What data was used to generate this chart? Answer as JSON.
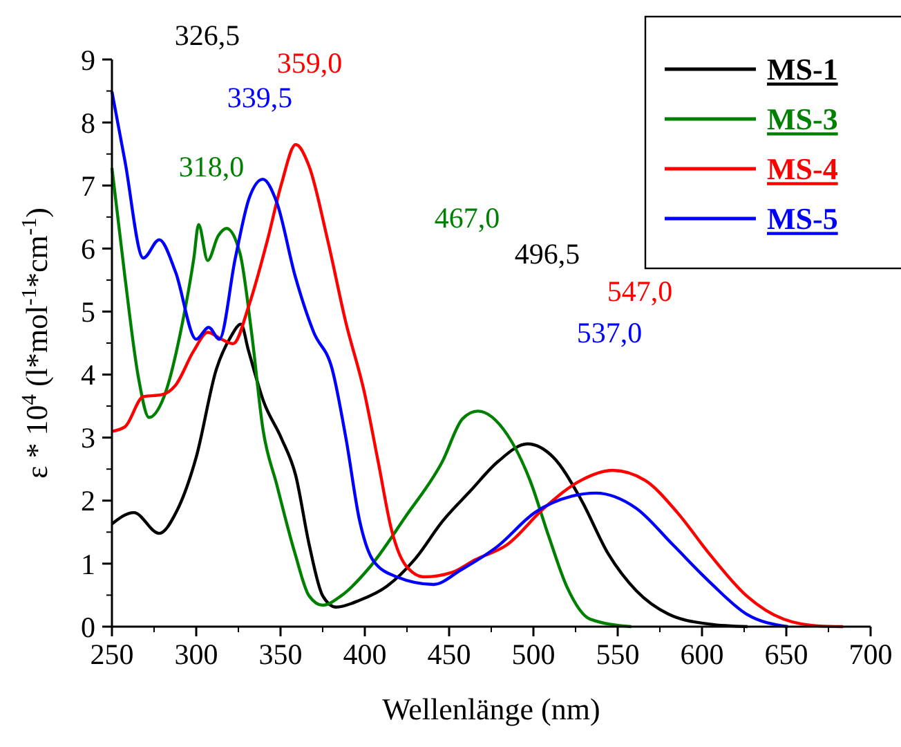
{
  "chart_data": {
    "type": "line",
    "xlabel": "Wellenlänge (nm)",
    "ylabel": "ε * 10$^{4}$ (l*mol$^{-1}$*cm$^{-1}$)",
    "xlim": [
      250,
      700
    ],
    "xticks": [
      250,
      300,
      350,
      400,
      450,
      500,
      550,
      600,
      650,
      700
    ],
    "ylim": [
      0,
      9
    ],
    "yticks": [
      0,
      1,
      2,
      3,
      4,
      5,
      6,
      7,
      8,
      9
    ],
    "grid": false,
    "legend": "top right",
    "marker": "none",
    "line_style": "solid",
    "series": [
      {
        "name": "MS-1",
        "color": "#000000",
        "x": [
          250,
          263,
          278,
          288,
          300,
          312,
          320.5,
          326.5,
          331,
          340,
          350.5,
          359,
          367,
          375,
          383,
          397,
          413,
          430,
          446,
          462.5,
          479,
          496.5,
          511.7,
          528,
          544.5,
          561,
          580,
          604.5,
          627
        ],
        "values": [
          1.63,
          1.81,
          1.48,
          1.81,
          2.69,
          4.09,
          4.6,
          4.8,
          4.38,
          3.57,
          2.99,
          2.4,
          1.3,
          0.49,
          0.31,
          0.42,
          0.64,
          1.08,
          1.67,
          2.15,
          2.62,
          2.9,
          2.69,
          2.03,
          1.15,
          0.57,
          0.2,
          0.04,
          0
        ]
      },
      {
        "name": "MS-3",
        "color": "#008000",
        "x": [
          250,
          257.7,
          265.8,
          272,
          280.9,
          291.8,
          298.6,
          301.4,
          306.8,
          313,
          318,
          326,
          332.8,
          339.6,
          347.8,
          358.7,
          366.9,
          375,
          386,
          402.5,
          424,
          446,
          458,
          467,
          484.4,
          498,
          509,
          519.9,
          533.6,
          558
        ],
        "values": [
          7.28,
          5.55,
          3.94,
          3.32,
          3.65,
          4.82,
          5.85,
          6.38,
          5.81,
          6.2,
          6.32,
          5.92,
          4.67,
          3.13,
          2.25,
          1.15,
          0.49,
          0.34,
          0.49,
          0.93,
          1.74,
          2.62,
          3.3,
          3.42,
          3.05,
          2.32,
          1.44,
          0.63,
          0.12,
          0
        ]
      },
      {
        "name": "MS-4",
        "color": "#ff0000",
        "x": [
          250,
          257.7,
          268.6,
          279.5,
          287.7,
          298.6,
          306.8,
          315,
          321.9,
          331.4,
          342.3,
          350.5,
          359,
          366.9,
          377.9,
          388.8,
          399.7,
          407.9,
          416,
          424.3,
          435.2,
          451.6,
          465.3,
          484.4,
          506.3,
          528.1,
          547,
          566.3,
          585.4,
          604.5,
          626.4,
          648.3,
          670,
          683.7
        ],
        "values": [
          3.1,
          3.17,
          3.65,
          3.68,
          3.83,
          4.38,
          4.67,
          4.56,
          4.49,
          5.11,
          6.14,
          7.02,
          7.65,
          7.31,
          6.14,
          4.82,
          3.72,
          2.62,
          1.52,
          0.97,
          0.79,
          0.86,
          1.06,
          1.3,
          1.88,
          2.32,
          2.48,
          2.32,
          1.81,
          1.15,
          0.49,
          0.12,
          0.01,
          0
        ]
      },
      {
        "name": "MS-5",
        "color": "#0000ff",
        "x": [
          250,
          257.7,
          268.6,
          278.1,
          287.7,
          300,
          307.4,
          313.7,
          323.2,
          331.4,
          339.5,
          347.8,
          358.7,
          369.7,
          380.6,
          388.8,
          397,
          405.2,
          418.9,
          440.7,
          457,
          479,
          500.8,
          522.7,
          537,
          560.9,
          582.7,
          604.5,
          626.4,
          651
        ],
        "values": [
          8.49,
          7.39,
          5.85,
          6.14,
          5.63,
          4.56,
          4.75,
          4.56,
          5.85,
          6.8,
          7.1,
          6.73,
          5.56,
          4.67,
          4.09,
          2.99,
          1.67,
          1.04,
          0.79,
          0.67,
          0.9,
          1.28,
          1.81,
          2.07,
          2.12,
          1.88,
          1.3,
          0.71,
          0.2,
          0
        ]
      }
    ],
    "annotations": [
      "326,5",
      "359,0",
      "339,5",
      "318,0",
      "467,0",
      "496,5",
      "547,0",
      "537,0"
    ]
  }
}
